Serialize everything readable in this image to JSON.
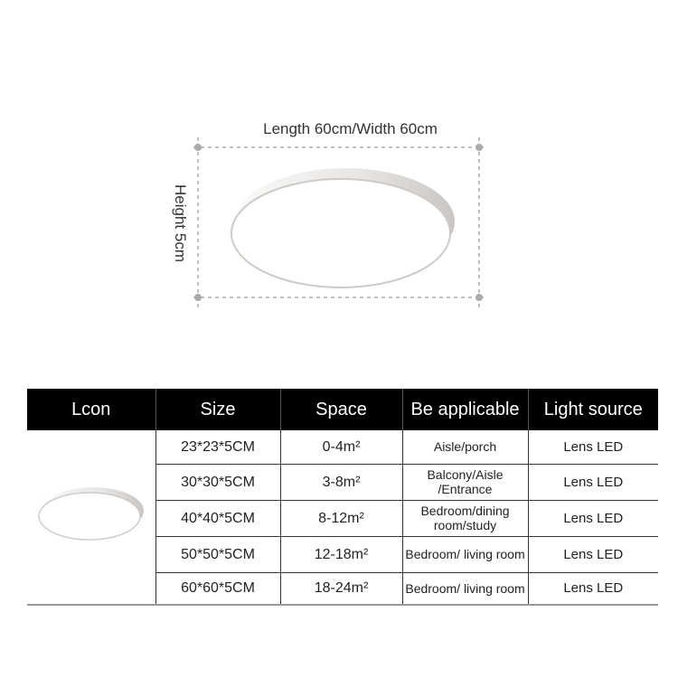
{
  "diagram": {
    "width_label": "Length 60cm/Width 60cm",
    "height_label": "Height 5cm"
  },
  "table": {
    "headers": [
      "Lcon",
      "Size",
      "Space",
      "Be applicable",
      "Light source"
    ],
    "rows": [
      {
        "size": "23*23*5CM",
        "space": "0-4m²",
        "applicable": "Aisle/porch",
        "source": "Lens LED"
      },
      {
        "size": "30*30*5CM",
        "space": "3-8m²",
        "applicable": "Balcony/Aisle /Entrance",
        "source": "Lens LED"
      },
      {
        "size": "40*40*5CM",
        "space": "8-12m²",
        "applicable": "Bedroom/dining room/study",
        "source": "Lens LED"
      },
      {
        "size": "50*50*5CM",
        "space": "12-18m²",
        "applicable": "Bedroom/ living room",
        "source": "Lens LED"
      },
      {
        "size": "60*60*5CM",
        "space": "18-24m²",
        "applicable": "Bedroom/ living room",
        "source": "Lens LED"
      }
    ]
  }
}
